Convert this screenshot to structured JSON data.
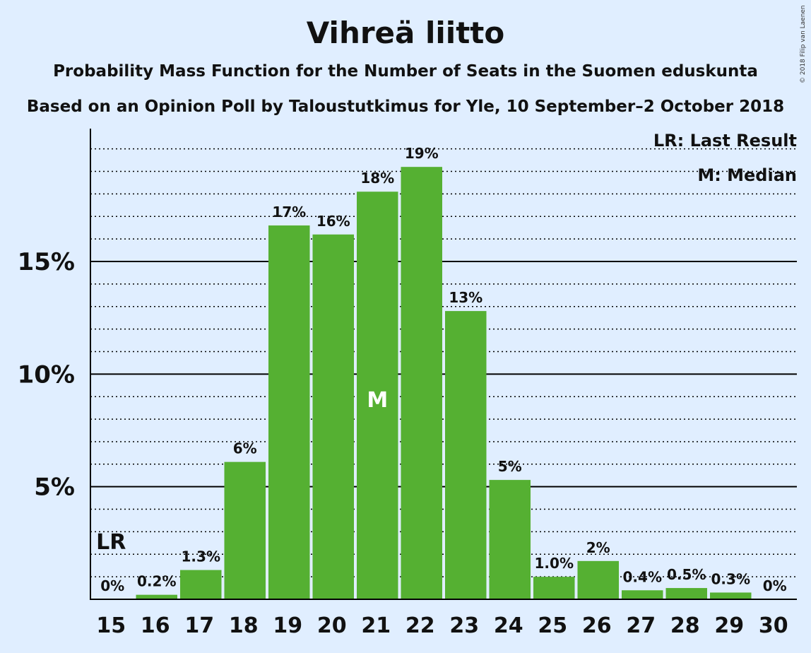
{
  "title": "Vihreä liitto",
  "subtitle_line1": "Probability Mass Function for the Number of Seats in the Suomen eduskunta",
  "subtitle_line2": "Based on an Opinion Poll by Taloustutkimus for Yle, 10 September–2 October 2018",
  "copyright": "© 2018 Filip van Laenen",
  "legend": {
    "last_result": "LR: Last Result",
    "median": "M: Median"
  },
  "colors": {
    "background": "#e0eeff",
    "bar": "#55b032",
    "axis": "#000000"
  },
  "chart_data": {
    "type": "bar",
    "x": [
      15,
      16,
      17,
      18,
      19,
      20,
      21,
      22,
      23,
      24,
      25,
      26,
      27,
      28,
      29,
      30
    ],
    "categories": [
      "15",
      "16",
      "17",
      "18",
      "19",
      "20",
      "21",
      "22",
      "23",
      "24",
      "25",
      "26",
      "27",
      "28",
      "29",
      "30"
    ],
    "values": [
      0,
      0.2,
      1.3,
      6.1,
      16.6,
      16.2,
      18.1,
      19.2,
      12.8,
      5.3,
      1.0,
      1.7,
      0.4,
      0.5,
      0.3,
      0
    ],
    "labels": [
      "0%",
      "0.2%",
      "1.3%",
      "6%",
      "17%",
      "16%",
      "18%",
      "19%",
      "13%",
      "5%",
      "1.0%",
      "2%",
      "0.4%",
      "0.5%",
      "0.3%",
      "0%"
    ],
    "y_ticks": [
      5,
      10,
      15
    ],
    "y_tick_labels": [
      "5%",
      "10%",
      "15%"
    ],
    "ylim": [
      0,
      20.9
    ],
    "minor_grid_step": 1,
    "last_result_seat": 15,
    "last_result_marker": "LR",
    "median_seat": 21,
    "median_marker": "M",
    "legend_position": "top-right"
  }
}
